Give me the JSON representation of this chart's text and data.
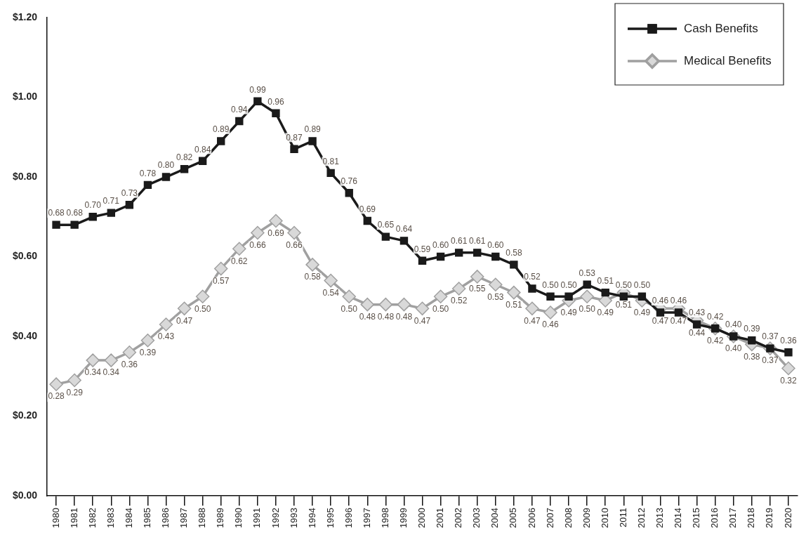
{
  "chart_data": {
    "type": "line",
    "categories": [
      "1980",
      "1981",
      "1982",
      "1983",
      "1984",
      "1985",
      "1986",
      "1987",
      "1988",
      "1989",
      "1990",
      "1991",
      "1992",
      "1993",
      "1994",
      "1995",
      "1996",
      "1997",
      "1998",
      "1999",
      "2000",
      "2001",
      "2002",
      "2003",
      "2004",
      "2005",
      "2006",
      "2007",
      "2008",
      "2009",
      "2010",
      "2011",
      "2012",
      "2013",
      "2014",
      "2015",
      "2016",
      "2017",
      "2018",
      "2019",
      "2020"
    ],
    "series": [
      {
        "name": "Cash Benefits",
        "color": "#1a1a1a",
        "marker": "square",
        "values": [
          0.68,
          0.68,
          0.7,
          0.71,
          0.73,
          0.78,
          0.8,
          0.82,
          0.84,
          0.89,
          0.94,
          0.99,
          0.96,
          0.87,
          0.89,
          0.81,
          0.76,
          0.69,
          0.65,
          0.64,
          0.59,
          0.6,
          0.61,
          0.61,
          0.6,
          0.58,
          0.52,
          0.5,
          0.5,
          0.53,
          0.51,
          0.5,
          0.5,
          0.46,
          0.46,
          0.43,
          0.42,
          0.4,
          0.39,
          0.37,
          0.36
        ],
        "value_labels": [
          "0.68",
          "0.68",
          "0.70",
          "0.71",
          "0.73",
          "0.78",
          "0.80",
          "0.82",
          "0.84",
          "0.89",
          "0.94",
          "0.99",
          "0.96",
          "0.87",
          "0.89",
          "0.81",
          "0.76",
          "0.69",
          "0.65",
          "0.64",
          "0.59",
          "0.60",
          "0.61",
          "0.61",
          "0.60",
          "0.58",
          "0.52",
          "0.50",
          "0.50",
          "0.53",
          "0.51",
          "0.50",
          "0.50",
          "0.46",
          "0.46",
          "0.43",
          "0.42",
          "0.40",
          "0.39",
          "0.37",
          "0.36"
        ]
      },
      {
        "name": "Medical Benefits",
        "color": "#a0a0a0",
        "marker": "diamond",
        "values": [
          0.28,
          0.29,
          0.34,
          0.34,
          0.36,
          0.39,
          0.43,
          0.47,
          0.5,
          0.57,
          0.62,
          0.66,
          0.69,
          0.66,
          0.58,
          0.54,
          0.5,
          0.48,
          0.48,
          0.48,
          0.47,
          0.5,
          0.52,
          0.55,
          0.53,
          0.51,
          0.47,
          0.46,
          0.49,
          0.5,
          0.49,
          0.51,
          0.49,
          0.47,
          0.47,
          0.44,
          0.42,
          0.4,
          0.38,
          0.37,
          0.32
        ],
        "value_labels": [
          "0.28",
          "0.29",
          "0.34",
          "0.34",
          "0.36",
          "0.39",
          "0.43",
          "0.47",
          "0.50",
          "0.57",
          "0.62",
          "0.66",
          "0.69",
          "0.66",
          "0.58",
          "0.54",
          "0.50",
          "0.48",
          "0.48",
          "0.48",
          "0.47",
          "0.50",
          "0.52",
          "0.55",
          "0.53",
          "0.51",
          "0.47",
          "0.46",
          "0.49",
          "0.50",
          "0.49",
          "0.51",
          "0.49",
          "0.47",
          "0.47",
          "0.44",
          "0.42",
          "0.40",
          "0.38",
          "0.37",
          "0.32"
        ]
      }
    ],
    "ylim": [
      0,
      1.2
    ],
    "yticks": [
      {
        "value": 0,
        "label": "$0.00"
      },
      {
        "value": 0.2,
        "label": "$0.20"
      },
      {
        "value": 0.4,
        "label": "$0.40"
      },
      {
        "value": 0.6,
        "label": "$0.60"
      },
      {
        "value": 0.8,
        "label": "$0.80"
      },
      {
        "value": 1.0,
        "label": "$1.00"
      },
      {
        "value": 1.2,
        "label": "$1.20"
      }
    ],
    "legend": "top right",
    "line_style": "solid"
  }
}
